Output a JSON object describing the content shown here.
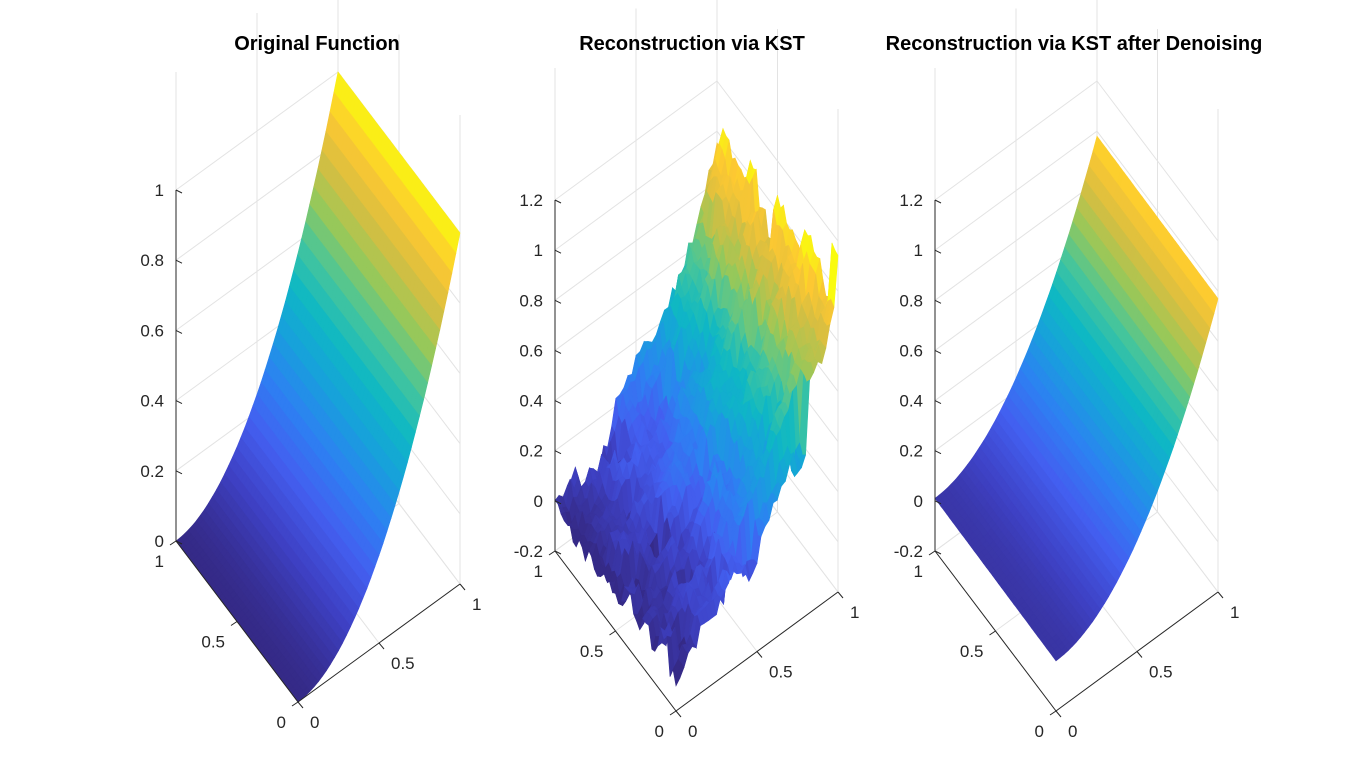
{
  "chart_data": [
    {
      "type": "surface",
      "title": "Original Function",
      "surface_kind": "smooth",
      "function": "z = x^2",
      "xlabel": "",
      "ylabel": "",
      "zlabel": "",
      "xlim": [
        0,
        1
      ],
      "ylim": [
        0,
        1
      ],
      "zlim": [
        0,
        1
      ],
      "x_ticks": [
        "0",
        "0.5",
        "1"
      ],
      "y_ticks": [
        "0",
        "0.5",
        "1"
      ],
      "z_ticks": [
        "0",
        "0.2",
        "0.4",
        "0.6",
        "0.8",
        "1"
      ],
      "z_tick_values": [
        0,
        0.2,
        0.4,
        0.6,
        0.8,
        1
      ],
      "grid": true,
      "colormap": "parula"
    },
    {
      "type": "surface",
      "title": "Reconstruction via KST",
      "surface_kind": "noisy",
      "function": "z ≈ x^2 + noise",
      "xlabel": "",
      "ylabel": "",
      "zlabel": "",
      "xlim": [
        0,
        1
      ],
      "ylim": [
        0,
        1
      ],
      "zlim": [
        -0.2,
        1.2
      ],
      "x_ticks": [
        "0",
        "0.5",
        "1"
      ],
      "y_ticks": [
        "0",
        "0.5",
        "1"
      ],
      "z_ticks": [
        "-0.2",
        "0",
        "0.2",
        "0.4",
        "0.6",
        "0.8",
        "1",
        "1.2"
      ],
      "z_tick_values": [
        -0.2,
        0,
        0.2,
        0.4,
        0.6,
        0.8,
        1,
        1.2
      ],
      "grid": true,
      "colormap": "parula"
    },
    {
      "type": "surface",
      "title": "Reconstruction via KST after Denoising",
      "surface_kind": "smooth",
      "function": "z ≈ x^2",
      "xlabel": "",
      "ylabel": "",
      "zlabel": "",
      "xlim": [
        0,
        1
      ],
      "ylim": [
        0,
        1
      ],
      "zlim": [
        -0.2,
        1.2
      ],
      "x_ticks": [
        "0",
        "0.5",
        "1"
      ],
      "y_ticks": [
        "0",
        "0.5",
        "1"
      ],
      "z_ticks": [
        "-0.2",
        "0",
        "0.2",
        "0.4",
        "0.6",
        "0.8",
        "1",
        "1.2"
      ],
      "z_tick_values": [
        -0.2,
        0,
        0.2,
        0.4,
        0.6,
        0.8,
        1,
        1.2
      ],
      "grid": true,
      "colormap": "parula"
    }
  ]
}
